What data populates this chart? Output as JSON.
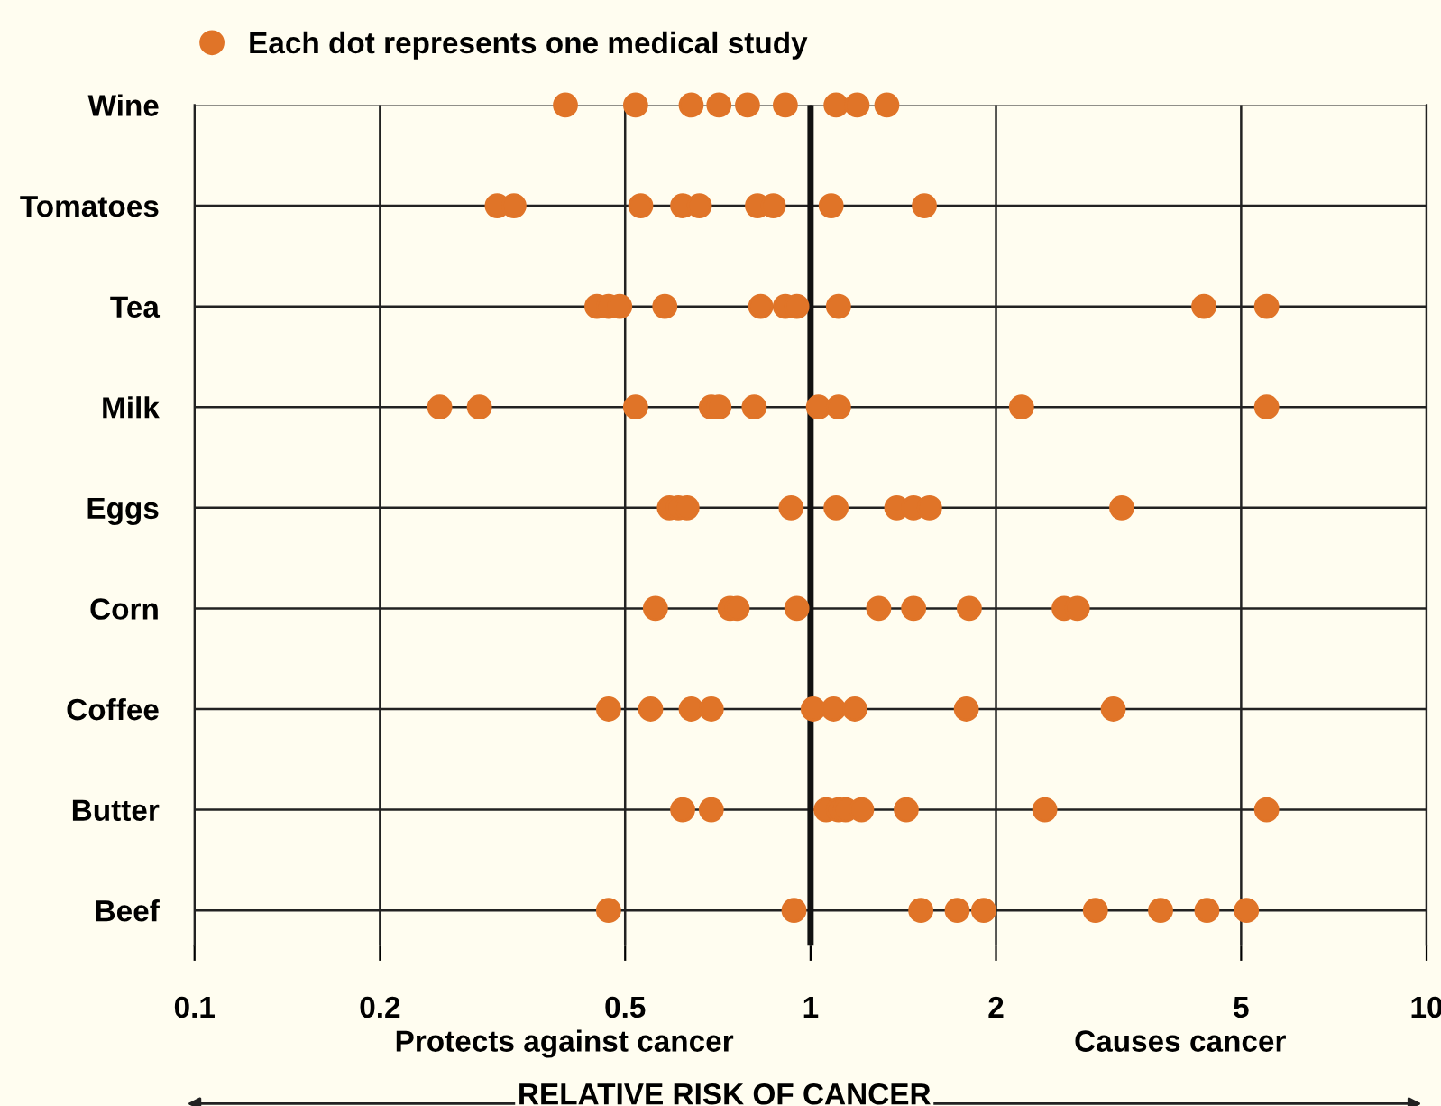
{
  "chart_data": {
    "type": "scatter",
    "orientation": "horizontal",
    "log": "x",
    "categories": [
      "Wine",
      "Tomatoes",
      "Tea",
      "Milk",
      "Eggs",
      "Corn",
      "Coffee",
      "Butter",
      "Beef"
    ],
    "series": [
      {
        "name": "Each dot represents one medical study",
        "color": "#e07428",
        "x": [
          "Wine",
          "Wine",
          "Wine",
          "Wine",
          "Wine",
          "Wine",
          "Wine",
          "Wine",
          "Wine",
          "Tomatoes",
          "Tomatoes",
          "Tomatoes",
          "Tomatoes",
          "Tomatoes",
          "Tomatoes",
          "Tomatoes",
          "Tomatoes",
          "Tomatoes",
          "Tea",
          "Tea",
          "Tea",
          "Tea",
          "Tea",
          "Tea",
          "Tea",
          "Tea",
          "Tea",
          "Tea",
          "Milk",
          "Milk",
          "Milk",
          "Milk",
          "Milk",
          "Milk",
          "Milk",
          "Milk",
          "Milk",
          "Milk",
          "Eggs",
          "Eggs",
          "Eggs",
          "Eggs",
          "Eggs",
          "Eggs",
          "Eggs",
          "Eggs",
          "Eggs",
          "Corn",
          "Corn",
          "Corn",
          "Corn",
          "Corn",
          "Corn",
          "Corn",
          "Corn",
          "Corn",
          "Coffee",
          "Coffee",
          "Coffee",
          "Coffee",
          "Coffee",
          "Coffee",
          "Coffee",
          "Coffee",
          "Coffee",
          "Butter",
          "Butter",
          "Butter",
          "Butter",
          "Butter",
          "Butter",
          "Butter",
          "Butter",
          "Butter",
          "Beef",
          "Beef",
          "Beef",
          "Beef",
          "Beef",
          "Beef",
          "Beef",
          "Beef",
          "Beef"
        ],
        "values": [
          0.4,
          0.52,
          0.64,
          0.71,
          0.79,
          0.91,
          1.1,
          1.19,
          1.33,
          0.31,
          0.33,
          0.53,
          0.62,
          0.66,
          0.82,
          0.87,
          1.08,
          1.53,
          0.45,
          0.47,
          0.49,
          0.58,
          0.83,
          0.91,
          0.95,
          1.11,
          4.35,
          5.5,
          0.25,
          0.29,
          0.52,
          0.69,
          0.71,
          0.81,
          1.03,
          1.11,
          2.2,
          5.5,
          0.59,
          0.61,
          0.63,
          0.93,
          1.1,
          1.38,
          1.47,
          1.56,
          3.2,
          0.56,
          0.74,
          0.76,
          0.95,
          1.29,
          1.47,
          1.81,
          2.58,
          2.71,
          0.47,
          0.55,
          0.64,
          0.69,
          1.01,
          1.09,
          1.18,
          1.79,
          3.1,
          0.62,
          0.69,
          1.06,
          1.11,
          1.14,
          1.21,
          1.43,
          2.4,
          5.5,
          0.47,
          0.94,
          1.51,
          1.73,
          1.91,
          2.9,
          3.7,
          4.4,
          5.1
        ]
      }
    ],
    "xlim": [
      0.1,
      10
    ],
    "xticks": [
      0.1,
      0.2,
      0.5,
      1,
      2,
      5,
      10
    ],
    "xlabel": "RELATIVE RISK OF CANCER",
    "annotations": [
      "Protects against cancer",
      "Causes cancer"
    ],
    "ref_lines": [
      {
        "axis": "x",
        "value": 1,
        "color": "#111111"
      }
    ],
    "grid": true,
    "legend": "top left",
    "marker": "circle"
  }
}
